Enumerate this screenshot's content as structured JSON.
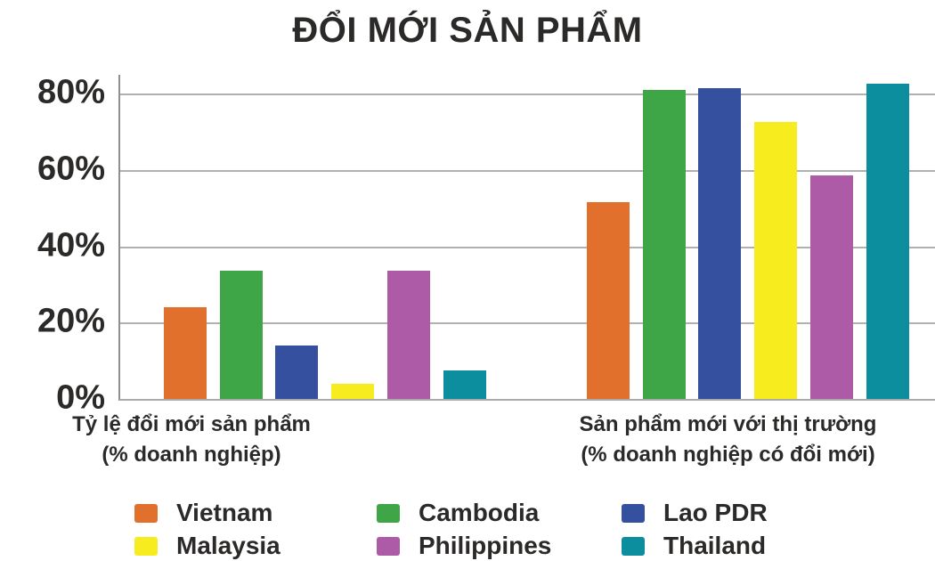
{
  "title": "ĐỔI MỚI SẢN PHẨM",
  "chart_data": {
    "type": "bar",
    "title": "ĐỔI MỚI SẢN PHẨM",
    "categories": [
      "Tỷ lệ đổi mới sản phẩm (% doanh nghiệp)",
      "Sản phẩm mới với thị trường (% doanh nghiệp có đổi mới)"
    ],
    "series": [
      {
        "name": "Vietnam",
        "color": "#e1702c",
        "values": [
          24,
          51.5
        ]
      },
      {
        "name": "Cambodia",
        "color": "#3ea647",
        "values": [
          33.5,
          81
        ]
      },
      {
        "name": "Lao PDR",
        "color": "#34509f",
        "values": [
          14,
          81.5
        ]
      },
      {
        "name": "Malaysia",
        "color": "#f7ed1e",
        "values": [
          4,
          72.5
        ]
      },
      {
        "name": "Philippines",
        "color": "#ad5aa7",
        "values": [
          33.5,
          58.5
        ]
      },
      {
        "name": "Thailand",
        "color": "#0c8e9e",
        "values": [
          7.5,
          82.5
        ]
      }
    ],
    "ylabel": "",
    "xlabel": "",
    "ylim": [
      0,
      85
    ],
    "y_tick_labels": [
      "80%",
      "60%",
      "40%",
      "20%",
      "0%"
    ],
    "y_tick_values": [
      80,
      60,
      40,
      20,
      0
    ],
    "grid": true,
    "legend_position": "bottom"
  },
  "group_labels": [
    {
      "line1": "Tỷ lệ đổi mới sản phẩm",
      "line2": "(% doanh nghiệp)"
    },
    {
      "line1": "Sản phẩm mới với thị trường",
      "line2": "(% doanh nghiệp có đổi mới)"
    }
  ],
  "legend_rows": [
    [
      "Vietnam",
      "Cambodia",
      "Lao PDR"
    ],
    [
      "Malaysia",
      "Philippines",
      "Thailand"
    ]
  ],
  "colors": {
    "text": "#2b2a29",
    "gridline": "#b0b0b0",
    "axis": "#8f8f8f",
    "background": "#ffffff"
  }
}
